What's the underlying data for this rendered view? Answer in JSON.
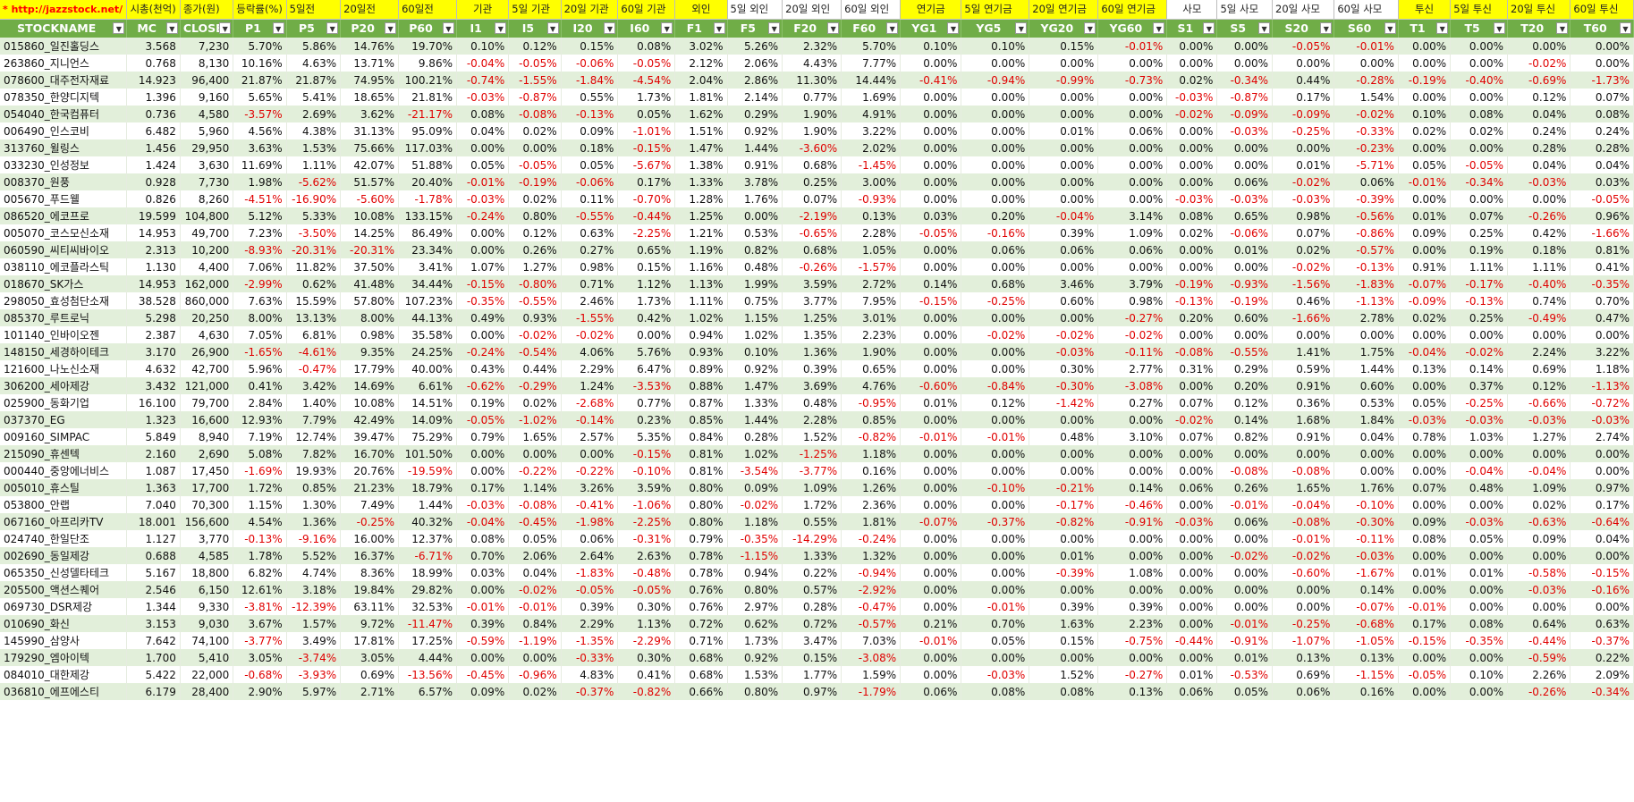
{
  "row1_labels": [
    "* http://jazzstock.net/ 활용",
    "시총(천억)",
    "종가(원)",
    "등락률(%)",
    "5일전",
    "20일전",
    "60일전",
    "기관",
    "5일 기관",
    "20일 기관",
    "60일 기관",
    "외인",
    "5일 외인",
    "20일 외인",
    "60일 외인",
    "연기금",
    "5일 연기금",
    "20일 연기금",
    "60일 연기금",
    "사모",
    "5일 사모",
    "20일 사모",
    "60일 사모",
    "투신",
    "5일 투신",
    "20일 투신",
    "60일 투신"
  ],
  "headers": [
    "STOCKNAME",
    "MC",
    "CLOSE",
    "P1",
    "P5",
    "P20",
    "P60",
    "I1",
    "I5",
    "I20",
    "I60",
    "F1",
    "F5",
    "F20",
    "F60",
    "YG1",
    "YG5",
    "YG20",
    "YG60",
    "S1",
    "S5",
    "S20",
    "S60",
    "T1",
    "T5",
    "T20",
    "T60"
  ],
  "rows": [
    [
      "015860_일진홀딩스",
      "3.568",
      "7,230",
      "5.70%",
      "5.86%",
      "14.76%",
      "19.70%",
      "0.10%",
      "0.12%",
      "0.15%",
      "0.08%",
      "3.02%",
      "5.26%",
      "2.32%",
      "5.70%",
      "0.10%",
      "0.10%",
      "0.15%",
      "-0.01%",
      "0.00%",
      "0.00%",
      "-0.05%",
      "-0.01%",
      "0.00%",
      "0.00%",
      "0.00%",
      "0.00%"
    ],
    [
      "263860_지니언스",
      "0.768",
      "8,130",
      "10.16%",
      "4.63%",
      "13.71%",
      "9.86%",
      "-0.04%",
      "-0.05%",
      "-0.06%",
      "-0.05%",
      "2.12%",
      "2.06%",
      "4.43%",
      "7.77%",
      "0.00%",
      "0.00%",
      "0.00%",
      "0.00%",
      "0.00%",
      "0.00%",
      "0.00%",
      "0.00%",
      "0.00%",
      "0.00%",
      "-0.02%",
      "0.00%"
    ],
    [
      "078600_대주전자재료",
      "14.923",
      "96,400",
      "21.87%",
      "21.87%",
      "74.95%",
      "100.21%",
      "-0.74%",
      "-1.55%",
      "-1.84%",
      "-4.54%",
      "2.04%",
      "2.86%",
      "11.30%",
      "14.44%",
      "-0.41%",
      "-0.94%",
      "-0.99%",
      "-0.73%",
      "0.02%",
      "-0.34%",
      "0.44%",
      "-0.28%",
      "-0.19%",
      "-0.40%",
      "-0.69%",
      "-1.73%"
    ],
    [
      "078350_한양디지텍",
      "1.396",
      "9,160",
      "5.65%",
      "5.41%",
      "18.65%",
      "21.81%",
      "-0.03%",
      "-0.87%",
      "0.55%",
      "1.73%",
      "1.81%",
      "2.14%",
      "0.77%",
      "1.69%",
      "0.00%",
      "0.00%",
      "0.00%",
      "0.00%",
      "-0.03%",
      "-0.87%",
      "0.17%",
      "1.54%",
      "0.00%",
      "0.00%",
      "0.12%",
      "0.07%"
    ],
    [
      "054040_한국컴퓨터",
      "0.736",
      "4,580",
      "-3.57%",
      "2.69%",
      "3.62%",
      "-21.17%",
      "0.08%",
      "-0.08%",
      "-0.13%",
      "0.05%",
      "1.62%",
      "0.29%",
      "1.90%",
      "4.91%",
      "0.00%",
      "0.00%",
      "0.00%",
      "0.00%",
      "-0.02%",
      "-0.09%",
      "-0.09%",
      "-0.02%",
      "0.10%",
      "0.08%",
      "0.04%",
      "0.08%"
    ],
    [
      "006490_인스코비",
      "6.482",
      "5,960",
      "4.56%",
      "4.38%",
      "31.13%",
      "95.09%",
      "0.04%",
      "0.02%",
      "0.09%",
      "-1.01%",
      "1.51%",
      "0.92%",
      "1.90%",
      "3.22%",
      "0.00%",
      "0.00%",
      "0.01%",
      "0.06%",
      "0.00%",
      "-0.03%",
      "-0.25%",
      "-0.33%",
      "0.02%",
      "0.02%",
      "0.24%",
      "0.24%"
    ],
    [
      "313760_윌링스",
      "1.456",
      "29,950",
      "3.63%",
      "1.53%",
      "75.66%",
      "117.03%",
      "0.00%",
      "0.00%",
      "0.18%",
      "-0.15%",
      "1.47%",
      "1.44%",
      "-3.60%",
      "2.02%",
      "0.00%",
      "0.00%",
      "0.00%",
      "0.00%",
      "0.00%",
      "0.00%",
      "0.00%",
      "-0.23%",
      "0.00%",
      "0.00%",
      "0.28%",
      "0.28%"
    ],
    [
      "033230_인성정보",
      "1.424",
      "3,630",
      "11.69%",
      "1.11%",
      "42.07%",
      "51.88%",
      "0.05%",
      "-0.05%",
      "0.05%",
      "-5.67%",
      "1.38%",
      "0.91%",
      "0.68%",
      "-1.45%",
      "0.00%",
      "0.00%",
      "0.00%",
      "0.00%",
      "0.00%",
      "0.00%",
      "0.01%",
      "-5.71%",
      "0.05%",
      "-0.05%",
      "0.04%",
      "0.04%"
    ],
    [
      "008370_원풍",
      "0.928",
      "7,730",
      "1.98%",
      "-5.62%",
      "51.57%",
      "20.40%",
      "-0.01%",
      "-0.19%",
      "-0.06%",
      "0.17%",
      "1.33%",
      "3.78%",
      "0.25%",
      "3.00%",
      "0.00%",
      "0.00%",
      "0.00%",
      "0.00%",
      "0.00%",
      "0.06%",
      "-0.02%",
      "0.06%",
      "-0.01%",
      "-0.34%",
      "-0.03%",
      "0.03%"
    ],
    [
      "005670_푸드웰",
      "0.826",
      "8,260",
      "-4.51%",
      "-16.90%",
      "-5.60%",
      "-1.78%",
      "-0.03%",
      "0.02%",
      "0.11%",
      "-0.70%",
      "1.28%",
      "1.76%",
      "0.07%",
      "-0.93%",
      "0.00%",
      "0.00%",
      "0.00%",
      "0.00%",
      "-0.03%",
      "-0.03%",
      "-0.03%",
      "-0.39%",
      "0.00%",
      "0.00%",
      "0.00%",
      "-0.05%"
    ],
    [
      "086520_에코프로",
      "19.599",
      "104,800",
      "5.12%",
      "5.33%",
      "10.08%",
      "133.15%",
      "-0.24%",
      "0.80%",
      "-0.55%",
      "-0.44%",
      "1.25%",
      "0.00%",
      "-2.19%",
      "0.13%",
      "0.03%",
      "0.20%",
      "-0.04%",
      "3.14%",
      "0.08%",
      "0.65%",
      "0.98%",
      "-0.56%",
      "0.01%",
      "0.07%",
      "-0.26%",
      "0.96%"
    ],
    [
      "005070_코스모신소재",
      "14.953",
      "49,700",
      "7.23%",
      "-3.50%",
      "14.25%",
      "86.49%",
      "0.00%",
      "0.12%",
      "0.63%",
      "-2.25%",
      "1.21%",
      "0.53%",
      "-0.65%",
      "2.28%",
      "-0.05%",
      "-0.16%",
      "0.39%",
      "1.09%",
      "0.02%",
      "-0.06%",
      "0.07%",
      "-0.86%",
      "0.09%",
      "0.25%",
      "0.42%",
      "-1.66%"
    ],
    [
      "060590_씨티씨바이오",
      "2.313",
      "10,200",
      "-8.93%",
      "-20.31%",
      "-20.31%",
      "23.34%",
      "0.00%",
      "0.26%",
      "0.27%",
      "0.65%",
      "1.19%",
      "0.82%",
      "0.68%",
      "1.05%",
      "0.00%",
      "0.06%",
      "0.06%",
      "0.06%",
      "0.00%",
      "0.01%",
      "0.02%",
      "-0.57%",
      "0.00%",
      "0.19%",
      "0.18%",
      "0.81%"
    ],
    [
      "038110_에코플라스틱",
      "1.130",
      "4,400",
      "7.06%",
      "11.82%",
      "37.50%",
      "3.41%",
      "1.07%",
      "1.27%",
      "0.98%",
      "0.15%",
      "1.16%",
      "0.48%",
      "-0.26%",
      "-1.57%",
      "0.00%",
      "0.00%",
      "0.00%",
      "0.00%",
      "0.00%",
      "0.00%",
      "-0.02%",
      "-0.13%",
      "0.91%",
      "1.11%",
      "1.11%",
      "0.41%"
    ],
    [
      "018670_SK가스",
      "14.953",
      "162,000",
      "-2.99%",
      "0.62%",
      "41.48%",
      "34.44%",
      "-0.15%",
      "-0.80%",
      "0.71%",
      "1.12%",
      "1.13%",
      "1.99%",
      "3.59%",
      "2.72%",
      "0.14%",
      "0.68%",
      "3.46%",
      "3.79%",
      "-0.19%",
      "-0.93%",
      "-1.56%",
      "-1.83%",
      "-0.07%",
      "-0.17%",
      "-0.40%",
      "-0.35%"
    ],
    [
      "298050_효성첨단소재",
      "38.528",
      "860,000",
      "7.63%",
      "15.59%",
      "57.80%",
      "107.23%",
      "-0.35%",
      "-0.55%",
      "2.46%",
      "1.73%",
      "1.11%",
      "0.75%",
      "3.77%",
      "7.95%",
      "-0.15%",
      "-0.25%",
      "0.60%",
      "0.98%",
      "-0.13%",
      "-0.19%",
      "0.46%",
      "-1.13%",
      "-0.09%",
      "-0.13%",
      "0.74%",
      "0.70%"
    ],
    [
      "085370_루트로닉",
      "5.298",
      "20,250",
      "8.00%",
      "13.13%",
      "8.00%",
      "44.13%",
      "0.49%",
      "0.93%",
      "-1.55%",
      "0.42%",
      "1.02%",
      "1.15%",
      "1.25%",
      "3.01%",
      "0.00%",
      "0.00%",
      "0.00%",
      "-0.27%",
      "0.20%",
      "0.60%",
      "-1.66%",
      "2.78%",
      "0.02%",
      "0.25%",
      "-0.49%",
      "0.47%"
    ],
    [
      "101140_인바이오젠",
      "2.387",
      "4,630",
      "7.05%",
      "6.81%",
      "0.98%",
      "35.58%",
      "0.00%",
      "-0.02%",
      "-0.02%",
      "0.00%",
      "0.94%",
      "1.02%",
      "1.35%",
      "2.23%",
      "0.00%",
      "-0.02%",
      "-0.02%",
      "-0.02%",
      "0.00%",
      "0.00%",
      "0.00%",
      "0.00%",
      "0.00%",
      "0.00%",
      "0.00%",
      "0.00%"
    ],
    [
      "148150_세경하이테크",
      "3.170",
      "26,900",
      "-1.65%",
      "-4.61%",
      "9.35%",
      "24.25%",
      "-0.24%",
      "-0.54%",
      "4.06%",
      "5.76%",
      "0.93%",
      "0.10%",
      "1.36%",
      "1.90%",
      "0.00%",
      "0.00%",
      "-0.03%",
      "-0.11%",
      "-0.08%",
      "-0.55%",
      "1.41%",
      "1.75%",
      "-0.04%",
      "-0.02%",
      "2.24%",
      "3.22%"
    ],
    [
      "121600_나노신소재",
      "4.632",
      "42,700",
      "5.96%",
      "-0.47%",
      "17.79%",
      "40.00%",
      "0.43%",
      "0.44%",
      "2.29%",
      "6.47%",
      "0.89%",
      "0.92%",
      "0.39%",
      "0.65%",
      "0.00%",
      "0.00%",
      "0.30%",
      "2.77%",
      "0.31%",
      "0.29%",
      "0.59%",
      "1.44%",
      "0.13%",
      "0.14%",
      "0.69%",
      "1.18%"
    ],
    [
      "306200_세아제강",
      "3.432",
      "121,000",
      "0.41%",
      "3.42%",
      "14.69%",
      "6.61%",
      "-0.62%",
      "-0.29%",
      "1.24%",
      "-3.53%",
      "0.88%",
      "1.47%",
      "3.69%",
      "4.76%",
      "-0.60%",
      "-0.84%",
      "-0.30%",
      "-3.08%",
      "0.00%",
      "0.20%",
      "0.91%",
      "0.60%",
      "0.00%",
      "0.37%",
      "0.12%",
      "-1.13%"
    ],
    [
      "025900_동화기업",
      "16.100",
      "79,700",
      "2.84%",
      "1.40%",
      "10.08%",
      "14.51%",
      "0.19%",
      "0.02%",
      "-2.68%",
      "0.77%",
      "0.87%",
      "1.33%",
      "0.48%",
      "-0.95%",
      "0.01%",
      "0.12%",
      "-1.42%",
      "0.27%",
      "0.07%",
      "0.12%",
      "0.36%",
      "0.53%",
      "0.05%",
      "-0.25%",
      "-0.66%",
      "-0.72%"
    ],
    [
      "037370_EG",
      "1.323",
      "16,600",
      "12.93%",
      "7.79%",
      "42.49%",
      "14.09%",
      "-0.05%",
      "-1.02%",
      "-0.14%",
      "0.23%",
      "0.85%",
      "1.44%",
      "2.28%",
      "0.85%",
      "0.00%",
      "0.00%",
      "0.00%",
      "0.00%",
      "-0.02%",
      "0.14%",
      "1.68%",
      "1.84%",
      "-0.03%",
      "-0.03%",
      "-0.03%",
      "-0.03%"
    ],
    [
      "009160_SIMPAC",
      "5.849",
      "8,940",
      "7.19%",
      "12.74%",
      "39.47%",
      "75.29%",
      "0.79%",
      "1.65%",
      "2.57%",
      "5.35%",
      "0.84%",
      "0.28%",
      "1.52%",
      "-0.82%",
      "-0.01%",
      "-0.01%",
      "0.48%",
      "3.10%",
      "0.07%",
      "0.82%",
      "0.91%",
      "0.04%",
      "0.78%",
      "1.03%",
      "1.27%",
      "2.74%"
    ],
    [
      "215090_휴센텍",
      "2.160",
      "2,690",
      "5.08%",
      "7.82%",
      "16.70%",
      "101.50%",
      "0.00%",
      "0.00%",
      "0.00%",
      "-0.15%",
      "0.81%",
      "1.02%",
      "-1.25%",
      "1.18%",
      "0.00%",
      "0.00%",
      "0.00%",
      "0.00%",
      "0.00%",
      "0.00%",
      "0.00%",
      "0.00%",
      "0.00%",
      "0.00%",
      "0.00%",
      "0.00%"
    ],
    [
      "000440_중앙에너비스",
      "1.087",
      "17,450",
      "-1.69%",
      "19.93%",
      "20.76%",
      "-19.59%",
      "0.00%",
      "-0.22%",
      "-0.22%",
      "-0.10%",
      "0.81%",
      "-3.54%",
      "-3.77%",
      "0.16%",
      "0.00%",
      "0.00%",
      "0.00%",
      "0.00%",
      "0.00%",
      "-0.08%",
      "-0.08%",
      "0.00%",
      "0.00%",
      "-0.04%",
      "-0.04%",
      "0.00%"
    ],
    [
      "005010_휴스틸",
      "1.363",
      "17,700",
      "1.72%",
      "0.85%",
      "21.23%",
      "18.79%",
      "0.17%",
      "1.14%",
      "3.26%",
      "3.59%",
      "0.80%",
      "0.09%",
      "1.09%",
      "1.26%",
      "0.00%",
      "-0.10%",
      "-0.21%",
      "0.14%",
      "0.06%",
      "0.26%",
      "1.65%",
      "1.76%",
      "0.07%",
      "0.48%",
      "1.09%",
      "0.97%"
    ],
    [
      "053800_안랩",
      "7.040",
      "70,300",
      "1.15%",
      "1.30%",
      "7.49%",
      "1.44%",
      "-0.03%",
      "-0.08%",
      "-0.41%",
      "-1.06%",
      "0.80%",
      "-0.02%",
      "1.72%",
      "2.36%",
      "0.00%",
      "0.00%",
      "-0.17%",
      "-0.46%",
      "0.00%",
      "-0.01%",
      "-0.04%",
      "-0.10%",
      "0.00%",
      "0.00%",
      "0.02%",
      "0.17%"
    ],
    [
      "067160_아프리카TV",
      "18.001",
      "156,600",
      "4.54%",
      "1.36%",
      "-0.25%",
      "40.32%",
      "-0.04%",
      "-0.45%",
      "-1.98%",
      "-2.25%",
      "0.80%",
      "1.18%",
      "0.55%",
      "1.81%",
      "-0.07%",
      "-0.37%",
      "-0.82%",
      "-0.91%",
      "-0.03%",
      "0.06%",
      "-0.08%",
      "-0.30%",
      "0.09%",
      "-0.03%",
      "-0.63%",
      "-0.64%"
    ],
    [
      "024740_한일단조",
      "1.127",
      "3,770",
      "-0.13%",
      "-9.16%",
      "16.00%",
      "12.37%",
      "0.08%",
      "0.05%",
      "0.06%",
      "-0.31%",
      "0.79%",
      "-0.35%",
      "-14.29%",
      "-0.24%",
      "0.00%",
      "0.00%",
      "0.00%",
      "0.00%",
      "0.00%",
      "0.00%",
      "-0.01%",
      "-0.11%",
      "0.08%",
      "0.05%",
      "0.09%",
      "0.04%"
    ],
    [
      "002690_동일제강",
      "0.688",
      "4,585",
      "1.78%",
      "5.52%",
      "16.37%",
      "-6.71%",
      "0.70%",
      "2.06%",
      "2.64%",
      "2.63%",
      "0.78%",
      "-1.15%",
      "1.33%",
      "1.32%",
      "0.00%",
      "0.00%",
      "0.01%",
      "0.00%",
      "0.00%",
      "-0.02%",
      "-0.02%",
      "-0.03%",
      "0.00%",
      "0.00%",
      "0.00%",
      "0.00%"
    ],
    [
      "065350_신성델타테크",
      "5.167",
      "18,800",
      "6.82%",
      "4.74%",
      "8.36%",
      "18.99%",
      "0.03%",
      "0.04%",
      "-1.83%",
      "-0.48%",
      "0.78%",
      "0.94%",
      "0.22%",
      "-0.94%",
      "0.00%",
      "0.00%",
      "-0.39%",
      "1.08%",
      "0.00%",
      "0.00%",
      "-0.60%",
      "-1.67%",
      "0.01%",
      "0.01%",
      "-0.58%",
      "-0.15%"
    ],
    [
      "205500_액션스퀘어",
      "2.546",
      "6,150",
      "12.61%",
      "3.18%",
      "19.84%",
      "29.82%",
      "0.00%",
      "-0.02%",
      "-0.05%",
      "-0.05%",
      "0.76%",
      "0.80%",
      "0.57%",
      "-2.92%",
      "0.00%",
      "0.00%",
      "0.00%",
      "0.00%",
      "0.00%",
      "0.00%",
      "0.00%",
      "0.14%",
      "0.00%",
      "0.00%",
      "-0.03%",
      "-0.16%"
    ],
    [
      "069730_DSR제강",
      "1.344",
      "9,330",
      "-3.81%",
      "-12.39%",
      "63.11%",
      "32.53%",
      "-0.01%",
      "-0.01%",
      "0.39%",
      "0.30%",
      "0.76%",
      "2.97%",
      "0.28%",
      "-0.47%",
      "0.00%",
      "-0.01%",
      "0.39%",
      "0.39%",
      "0.00%",
      "0.00%",
      "0.00%",
      "-0.07%",
      "-0.01%",
      "0.00%",
      "0.00%",
      "0.00%"
    ],
    [
      "010690_화신",
      "3.153",
      "9,030",
      "3.67%",
      "1.57%",
      "9.72%",
      "-11.47%",
      "0.39%",
      "0.84%",
      "2.29%",
      "1.13%",
      "0.72%",
      "0.62%",
      "0.72%",
      "-0.57%",
      "0.21%",
      "0.70%",
      "1.63%",
      "2.23%",
      "0.00%",
      "-0.01%",
      "-0.25%",
      "-0.68%",
      "0.17%",
      "0.08%",
      "0.64%",
      "0.63%"
    ],
    [
      "145990_삼양사",
      "7.642",
      "74,100",
      "-3.77%",
      "3.49%",
      "17.81%",
      "17.25%",
      "-0.59%",
      "-1.19%",
      "-1.35%",
      "-2.29%",
      "0.71%",
      "1.73%",
      "3.47%",
      "7.03%",
      "-0.01%",
      "0.05%",
      "0.15%",
      "-0.75%",
      "-0.44%",
      "-0.91%",
      "-1.07%",
      "-1.05%",
      "-0.15%",
      "-0.35%",
      "-0.44%",
      "-0.37%"
    ],
    [
      "179290_엠아이텍",
      "1.700",
      "5,410",
      "3.05%",
      "-3.74%",
      "3.05%",
      "4.44%",
      "0.00%",
      "0.00%",
      "-0.33%",
      "0.30%",
      "0.68%",
      "0.92%",
      "0.15%",
      "-3.08%",
      "0.00%",
      "0.00%",
      "0.00%",
      "0.00%",
      "0.00%",
      "0.01%",
      "0.13%",
      "0.13%",
      "0.00%",
      "0.00%",
      "-0.59%",
      "0.22%"
    ],
    [
      "084010_대한제강",
      "5.422",
      "22,000",
      "-0.68%",
      "-3.93%",
      "0.69%",
      "-13.56%",
      "-0.45%",
      "-0.96%",
      "4.83%",
      "0.41%",
      "0.68%",
      "1.53%",
      "1.77%",
      "1.59%",
      "0.00%",
      "-0.03%",
      "1.52%",
      "-0.27%",
      "0.01%",
      "-0.53%",
      "0.69%",
      "-1.15%",
      "-0.05%",
      "0.10%",
      "2.26%",
      "2.09%"
    ],
    [
      "036810_에프에스티",
      "6.179",
      "28,400",
      "2.90%",
      "5.97%",
      "2.71%",
      "6.57%",
      "0.09%",
      "0.02%",
      "-0.37%",
      "-0.82%",
      "0.66%",
      "0.80%",
      "0.97%",
      "-1.79%",
      "0.06%",
      "0.08%",
      "0.08%",
      "0.13%",
      "0.06%",
      "0.05%",
      "0.06%",
      "0.16%",
      "0.00%",
      "0.00%",
      "-0.26%",
      "-0.34%"
    ]
  ]
}
